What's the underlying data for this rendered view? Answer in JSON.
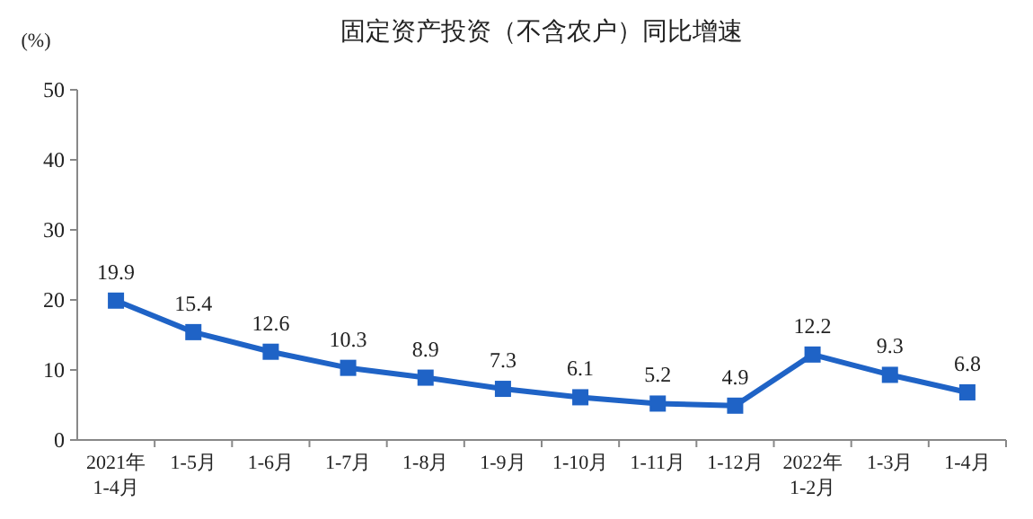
{
  "chart_data": {
    "type": "line",
    "title": "固定资产投资（不含农户）同比增速",
    "ylabel": "(%)",
    "categories": [
      "2021年\n1-4月",
      "1-5月",
      "1-6月",
      "1-7月",
      "1-8月",
      "1-9月",
      "1-10月",
      "1-11月",
      "1-12月",
      "2022年\n1-2月",
      "1-3月",
      "1-4月"
    ],
    "series": [
      {
        "color": "#1f63c6",
        "values": [
          19.9,
          15.4,
          12.6,
          10.3,
          8.9,
          7.3,
          6.1,
          5.2,
          4.9,
          12.2,
          9.3,
          6.8
        ]
      }
    ],
    "ylim": [
      0,
      50
    ],
    "yticks": [
      0,
      10,
      20,
      30,
      40,
      50
    ],
    "marker": "square",
    "line_style": "solid",
    "data_labels": true
  }
}
